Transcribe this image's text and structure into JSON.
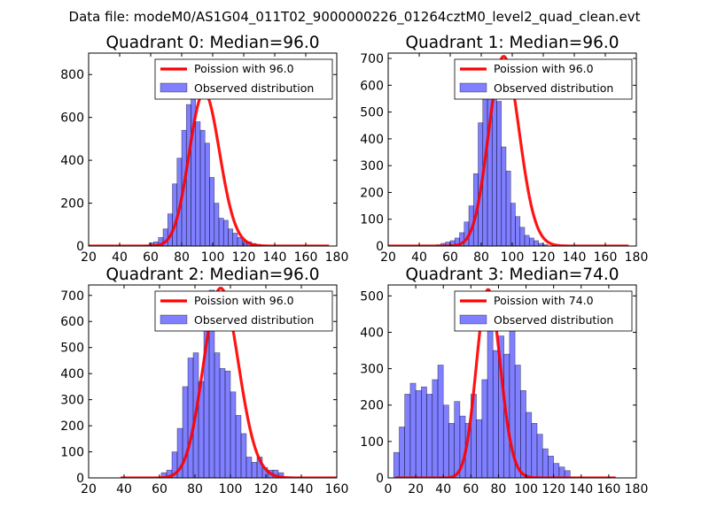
{
  "figure": {
    "suptitle": "Data file: modeM0/AS1G04_011T02_9000000226_01264cztM0_level2_quad_clean.evt"
  },
  "chart_data": [
    {
      "type": "bar",
      "title": "Quadrant 0: Median=96.0",
      "xlim": [
        20,
        180
      ],
      "xticks": [
        20,
        40,
        60,
        80,
        100,
        120,
        140,
        160,
        180
      ],
      "ylim": [
        0,
        900
      ],
      "yticks": [
        0,
        200,
        400,
        600,
        800
      ],
      "legend": [
        "Poission with 96.0",
        "Observed distribution"
      ],
      "legend_position": "upper right",
      "bins_start": 56,
      "bin_width": 3,
      "hist_values": [
        5,
        15,
        20,
        40,
        80,
        150,
        290,
        410,
        540,
        660,
        700,
        580,
        540,
        480,
        320,
        200,
        130,
        120,
        80,
        60,
        40,
        25,
        20,
        12,
        8,
        5
      ],
      "poisson_mean": 96.0,
      "poisson_peak": 710,
      "curve_range": [
        20,
        175
      ]
    },
    {
      "type": "bar",
      "title": "Quadrant 1: Median=96.0",
      "xlim": [
        20,
        180
      ],
      "xticks": [
        20,
        40,
        60,
        80,
        100,
        120,
        140,
        160,
        180
      ],
      "ylim": [
        0,
        720
      ],
      "yticks": [
        0,
        100,
        200,
        300,
        400,
        500,
        600,
        700
      ],
      "legend": [
        "Poission with 96.0",
        "Observed distribution"
      ],
      "legend_position": "upper right",
      "bins_start": 51,
      "bin_width": 3,
      "hist_values": [
        5,
        10,
        15,
        20,
        30,
        50,
        90,
        150,
        270,
        460,
        620,
        580,
        690,
        540,
        370,
        280,
        160,
        110,
        70,
        40,
        30,
        20,
        10,
        5
      ],
      "poisson_mean": 96.0,
      "poisson_peak": 700,
      "curve_range": [
        20,
        175
      ]
    },
    {
      "type": "bar",
      "title": "Quadrant 2: Median=96.0",
      "xlim": [
        20,
        160
      ],
      "xticks": [
        20,
        40,
        60,
        80,
        100,
        120,
        140,
        160
      ],
      "ylim": [
        0,
        740
      ],
      "yticks": [
        0,
        100,
        200,
        300,
        400,
        500,
        600,
        700
      ],
      "legend": [
        "Poission with 96.0",
        "Observed distribution"
      ],
      "legend_position": "upper right",
      "bins_start": 61,
      "bin_width": 3,
      "hist_values": [
        20,
        30,
        100,
        190,
        350,
        460,
        480,
        370,
        580,
        720,
        480,
        420,
        410,
        330,
        240,
        170,
        80,
        60,
        80,
        40,
        30,
        30,
        20
      ],
      "poisson_mean": 96.0,
      "poisson_peak": 720,
      "curve_range": [
        38,
        160
      ]
    },
    {
      "type": "bar",
      "title": "Quadrant 3: Median=74.0",
      "xlim": [
        0,
        180
      ],
      "xticks": [
        0,
        20,
        40,
        60,
        80,
        100,
        120,
        140,
        160,
        180
      ],
      "ylim": [
        0,
        530
      ],
      "yticks": [
        0,
        100,
        200,
        300,
        400,
        500
      ],
      "legend": [
        "Poission with 74.0",
        "Observed distribution"
      ],
      "legend_position": "upper right",
      "bins_start": 4,
      "bin_width": 4,
      "hist_values": [
        70,
        140,
        230,
        260,
        240,
        250,
        230,
        270,
        310,
        200,
        150,
        210,
        170,
        150,
        230,
        160,
        270,
        500,
        350,
        390,
        340,
        460,
        310,
        240,
        180,
        150,
        120,
        80,
        60,
        40,
        30,
        20
      ],
      "poisson_mean": 74.0,
      "poisson_peak": 510,
      "curve_range": [
        5,
        165
      ]
    }
  ]
}
